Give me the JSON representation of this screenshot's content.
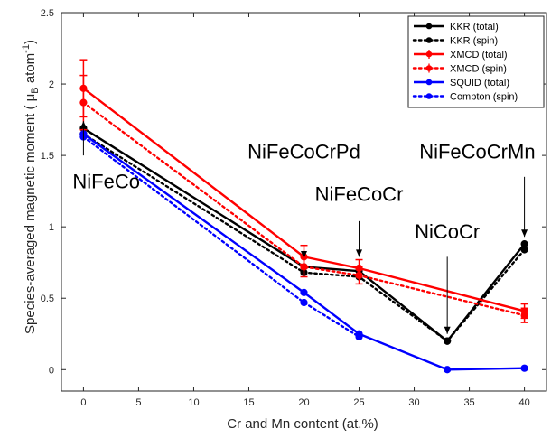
{
  "chart_data": {
    "type": "line",
    "xlabel": "Cr and Mn content (at.%)",
    "ylabel": "Species-averaged magnetic moment ( μ",
    "ylabel_sub": "B",
    "ylabel_tail": " atom",
    "ylabel_sup": "-1",
    "ylabel_close": ")",
    "xlim": [
      -2,
      42
    ],
    "ylim": [
      -0.15,
      2.5
    ],
    "xticks": [
      0,
      5,
      10,
      15,
      20,
      25,
      30,
      35,
      40
    ],
    "xtick_labels": [
      "0",
      "5",
      "10",
      "15",
      "20",
      "25",
      "30",
      "35",
      "40"
    ],
    "yticks": [
      0,
      0.5,
      1,
      1.5,
      2,
      2.5
    ],
    "ytick_labels": [
      "0",
      "0.5",
      "1",
      "1.5",
      "2",
      "2.5"
    ],
    "grid": false,
    "legend_position": "top-right",
    "series": [
      {
        "name": "KKR (total)",
        "color": "#000000",
        "dash": "solid",
        "x": [
          0,
          20,
          25,
          33,
          40
        ],
        "y": [
          1.69,
          0.72,
          0.69,
          0.2,
          0.88
        ]
      },
      {
        "name": "KKR (spin)",
        "color": "#000000",
        "dash": "dotted",
        "x": [
          0,
          20,
          25,
          33,
          40
        ],
        "y": [
          1.65,
          0.68,
          0.65,
          0.2,
          0.84
        ]
      },
      {
        "name": "XMCD (total)",
        "color": "#ff0000",
        "dash": "solid",
        "x": [
          0,
          20,
          25,
          40
        ],
        "y": [
          1.97,
          0.79,
          0.71,
          0.41
        ],
        "err": [
          0.2,
          0.08,
          0.06,
          0.05
        ]
      },
      {
        "name": "XMCD (spin)",
        "color": "#ff0000",
        "dash": "dotted",
        "x": [
          0,
          20,
          25,
          40
        ],
        "y": [
          1.87,
          0.72,
          0.66,
          0.38
        ],
        "err": [
          0.19,
          0.07,
          0.06,
          0.05
        ]
      },
      {
        "name": "SQUID (total)",
        "color": "#0000ff",
        "dash": "solid",
        "x": [
          0,
          20,
          25,
          33,
          40
        ],
        "y": [
          1.65,
          0.54,
          0.25,
          0.0,
          0.01
        ]
      },
      {
        "name": "Compton (spin)",
        "color": "#0000ff",
        "dash": "dotted",
        "x": [
          0,
          20,
          25
        ],
        "y": [
          1.63,
          0.47,
          0.23
        ]
      }
    ],
    "annotations": [
      {
        "text": "NiFeCo",
        "x": 0,
        "y": 1.69
      },
      {
        "text": "NiFeCoCrPd",
        "x": 20,
        "y": 0.72
      },
      {
        "text": "NiFeCoCr",
        "x": 25,
        "y": 0.69
      },
      {
        "text": "NiCoCr",
        "x": 33,
        "y": 0.2
      },
      {
        "text": "NiFeCoCrMn",
        "x": 40,
        "y": 0.88
      }
    ]
  }
}
